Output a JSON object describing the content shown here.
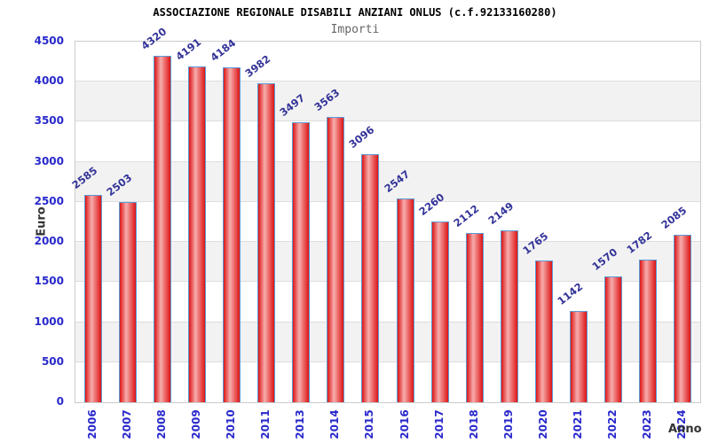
{
  "header": {
    "title": "ASSOCIAZIONE REGIONALE DISABILI ANZIANI ONLUS (c.f.92133160280)",
    "subtitle": "Importi"
  },
  "chart_data": {
    "type": "bar",
    "title": "ASSOCIAZIONE REGIONALE DISABILI ANZIANI ONLUS (c.f.92133160280)",
    "subtitle": "Importi",
    "xlabel": "Anno",
    "ylabel": "Euro",
    "categories": [
      "2006",
      "2007",
      "2008",
      "2009",
      "2010",
      "2011",
      "2013",
      "2014",
      "2015",
      "2016",
      "2017",
      "2018",
      "2019",
      "2020",
      "2021",
      "2022",
      "2023",
      "2024"
    ],
    "values": [
      2585,
      2503,
      4320,
      4191,
      4184,
      3982,
      3497,
      3563,
      3096,
      2547,
      2260,
      2112,
      2149,
      1765,
      1142,
      1570,
      1782,
      2085
    ],
    "ylim": [
      0,
      4500
    ],
    "yticks": [
      0,
      500,
      1000,
      1500,
      2000,
      2500,
      3000,
      3500,
      4000,
      4500
    ],
    "grid": "horizontal gridlines every 500 with alternating gray bands",
    "legend": null,
    "bar_label_rotation_deg": -38,
    "x_tick_rotation_deg": -90
  },
  "colors": {
    "bar_edge_red": "#dd1515",
    "bar_center_red": "#f7adad",
    "bar_border": "#5b9bd5",
    "axis_tick_label": "#2929cc",
    "value_label": "#333399",
    "band_gray": "#f2f2f2",
    "grid_line": "#dddddd",
    "plot_border": "#cccccc",
    "title_text": "#000000",
    "subtitle_text": "#666666",
    "axis_title_text": "#333333"
  }
}
